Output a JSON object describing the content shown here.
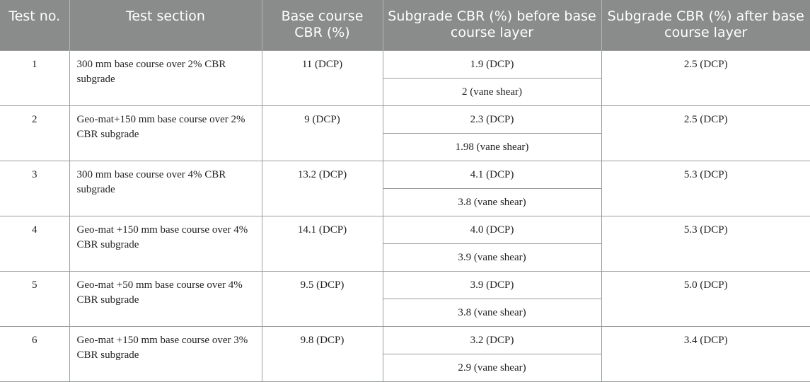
{
  "headers": {
    "test_no": "Test no.",
    "test_section": "Test section",
    "base_cbr": "Base course CBR (%)",
    "subgrade_before": "Subgrade CBR (%) before base course layer",
    "subgrade_after": "Subgrade CBR (%) after base course layer"
  },
  "rows": [
    {
      "no": "1",
      "section": "300 mm base course over 2% CBR subgrade",
      "base": "11 (DCP)",
      "before_dcp": "1.9 (DCP)",
      "before_vane": "2 (vane shear)",
      "after": "2.5 (DCP)"
    },
    {
      "no": "2",
      "section": "Geo-mat+150 mm base course over 2% CBR subgrade",
      "base": "9 (DCP)",
      "before_dcp": "2.3 (DCP)",
      "before_vane": "1.98 (vane shear)",
      "after": "2.5 (DCP)"
    },
    {
      "no": "3",
      "section": "300 mm base course over 4% CBR subgrade",
      "base": "13.2 (DCP)",
      "before_dcp": "4.1 (DCP)",
      "before_vane": "3.8 (vane shear)",
      "after": "5.3 (DCP)"
    },
    {
      "no": "4",
      "section": "Geo-mat +150 mm base course over 4% CBR subgrade",
      "base": "14.1 (DCP)",
      "before_dcp": "4.0 (DCP)",
      "before_vane": "3.9 (vane shear)",
      "after": "5.3 (DCP)"
    },
    {
      "no": "5",
      "section": "Geo-mat +50 mm base course over 4% CBR subgrade",
      "base": "9.5 (DCP)",
      "before_dcp": "3.9 (DCP)",
      "before_vane": "3.8 (vane shear)",
      "after": "5.0 (DCP)"
    },
    {
      "no": "6",
      "section": "Geo-mat +150 mm base course over 3% CBR subgrade",
      "base": "9.8 (DCP)",
      "before_dcp": "3.2 (DCP)",
      "before_vane": "2.9 (vane shear)",
      "after": "3.4 (DCP)"
    }
  ]
}
